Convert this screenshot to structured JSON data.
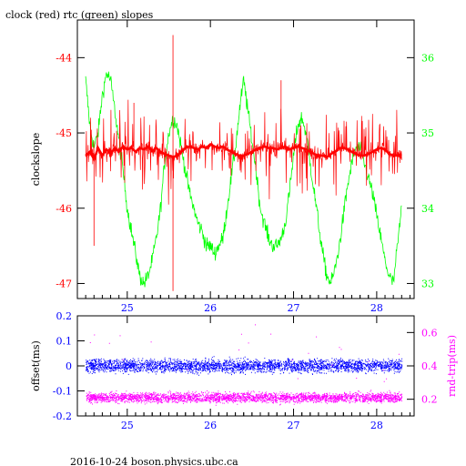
{
  "title": "clock (red) rtc (green) slopes",
  "footer": "2016-10-24 boson.physics.ubc.ca",
  "colors": {
    "clock": "#ff0000",
    "rtc": "#00ff00",
    "offset": "#0000ff",
    "rndtrip": "#ff00ff",
    "frame": "#000000"
  },
  "chart_data": [
    {
      "type": "line",
      "title": "clock (red) rtc (green) slopes",
      "ylabel": "clockslope",
      "y2label": "",
      "xlim": [
        24.4,
        28.45
      ],
      "ylim": [
        -47.2,
        -43.5
      ],
      "y2lim": [
        32.8,
        36.5
      ],
      "x_ticks": [
        "25",
        "26",
        "27",
        "28"
      ],
      "y_ticks": [
        "-44",
        "-45",
        "-46",
        "-47"
      ],
      "y2_ticks": [
        "36",
        "35",
        "34",
        "33"
      ],
      "series": [
        {
          "name": "clock",
          "axis": "left",
          "color": "#ff0000",
          "x": [
            24.5,
            24.55,
            24.6,
            24.65,
            24.7,
            24.75,
            24.8,
            24.85,
            24.9,
            24.95,
            25.0,
            25.05,
            25.1,
            25.15,
            25.2,
            25.25,
            25.3,
            25.35,
            25.4,
            25.45,
            25.5,
            25.55,
            25.6,
            25.65,
            25.7,
            25.75,
            25.8,
            25.85,
            25.9,
            25.95,
            26.0,
            26.05,
            26.1,
            26.15,
            26.2,
            26.25,
            26.3,
            26.35,
            26.4,
            26.45,
            26.5,
            26.55,
            26.6,
            26.65,
            26.7,
            26.75,
            26.8,
            26.85,
            26.9,
            26.95,
            27.0,
            27.05,
            27.1,
            27.15,
            27.2,
            27.25,
            27.3,
            27.35,
            27.4,
            27.45,
            27.5,
            27.55,
            27.6,
            27.65,
            27.7,
            27.75,
            27.8,
            27.85,
            27.9,
            27.95,
            28.0,
            28.05,
            28.1,
            28.15,
            28.2,
            28.25,
            28.3
          ],
          "y": [
            -45.3,
            -45.25,
            -45.35,
            -45.2,
            -45.3,
            -45.22,
            -45.28,
            -45.2,
            -45.25,
            -45.18,
            -45.22,
            -45.2,
            -45.25,
            -45.2,
            -45.22,
            -45.18,
            -45.24,
            -45.2,
            -45.25,
            -45.28,
            -45.3,
            -45.32,
            -45.3,
            -45.25,
            -45.2,
            -45.18,
            -45.2,
            -45.22,
            -45.18,
            -45.2,
            -45.15,
            -45.18,
            -45.2,
            -45.18,
            -45.22,
            -45.25,
            -45.28,
            -45.3,
            -45.3,
            -45.28,
            -45.25,
            -45.22,
            -45.2,
            -45.18,
            -45.2,
            -45.2,
            -45.22,
            -45.2,
            -45.18,
            -45.22,
            -45.2,
            -45.18,
            -45.2,
            -45.22,
            -45.25,
            -45.28,
            -45.3,
            -45.3,
            -45.32,
            -45.28,
            -45.25,
            -45.2,
            -45.2,
            -45.22,
            -45.25,
            -45.28,
            -45.3,
            -45.3,
            -45.28,
            -45.25,
            -45.22,
            -45.2,
            -45.22,
            -45.28,
            -45.3,
            -45.3,
            -45.28
          ]
        },
        {
          "name": "rtc",
          "axis": "right",
          "color": "#00ff00",
          "x": [
            24.5,
            24.55,
            24.6,
            24.65,
            24.7,
            24.75,
            24.8,
            24.85,
            24.9,
            24.95,
            25.0,
            25.05,
            25.1,
            25.15,
            25.2,
            25.25,
            25.3,
            25.35,
            25.4,
            25.45,
            25.5,
            25.55,
            25.6,
            25.65,
            25.7,
            25.75,
            25.8,
            25.85,
            25.9,
            25.95,
            26.0,
            26.05,
            26.1,
            26.15,
            26.2,
            26.25,
            26.3,
            26.35,
            26.4,
            26.45,
            26.5,
            26.55,
            26.6,
            26.65,
            26.7,
            26.75,
            26.8,
            26.85,
            26.9,
            26.95,
            27.0,
            27.05,
            27.1,
            27.15,
            27.2,
            27.25,
            27.3,
            27.35,
            27.4,
            27.45,
            27.5,
            27.55,
            27.6,
            27.65,
            27.7,
            27.75,
            27.8,
            27.85,
            27.9,
            27.95,
            28.0,
            28.05,
            28.1,
            28.15,
            28.2,
            28.25,
            28.3
          ],
          "y": [
            35.7,
            35.1,
            34.8,
            35.0,
            35.5,
            35.8,
            35.7,
            35.3,
            34.9,
            34.5,
            34.0,
            33.7,
            33.4,
            33.1,
            33.0,
            33.1,
            33.3,
            33.6,
            34.0,
            34.6,
            35.0,
            35.2,
            35.1,
            34.8,
            34.5,
            34.2,
            34.0,
            33.8,
            33.7,
            33.5,
            33.5,
            33.4,
            33.5,
            33.6,
            34.0,
            34.4,
            34.8,
            35.3,
            35.7,
            35.3,
            34.9,
            34.5,
            34.0,
            33.8,
            33.6,
            33.5,
            33.5,
            33.6,
            33.8,
            34.2,
            34.7,
            35.1,
            35.2,
            35.0,
            34.6,
            34.2,
            33.8,
            33.4,
            33.1,
            33.0,
            33.2,
            33.5,
            33.9,
            34.3,
            34.6,
            34.8,
            34.8,
            34.6,
            34.4,
            34.2,
            33.9,
            33.6,
            33.3,
            33.1,
            33.0,
            33.5,
            34.0
          ]
        }
      ]
    },
    {
      "type": "scatter",
      "ylabel": "offset(ms)",
      "y2label": "rnd-trip(ms)",
      "xlim": [
        24.4,
        28.45
      ],
      "ylim": [
        -0.2,
        0.2
      ],
      "y2lim": [
        0.1,
        0.7
      ],
      "x_ticks": [
        "25",
        "26",
        "27",
        "28"
      ],
      "y_ticks": [
        "0.2",
        "0.1",
        "0",
        "-0.1",
        "-0.2"
      ],
      "y2_ticks": [
        "0.6",
        "0.4",
        "0.2"
      ],
      "series": [
        {
          "name": "offset",
          "axis": "left",
          "color": "#0000ff",
          "x": [
            24.5,
            28.3
          ],
          "y": [
            0.0,
            0.0
          ],
          "band": 0.045
        },
        {
          "name": "rnd-trip",
          "axis": "right",
          "color": "#ff00ff",
          "x": [
            24.5,
            28.3
          ],
          "y": [
            0.21,
            0.21
          ],
          "band": 0.05
        }
      ]
    }
  ]
}
